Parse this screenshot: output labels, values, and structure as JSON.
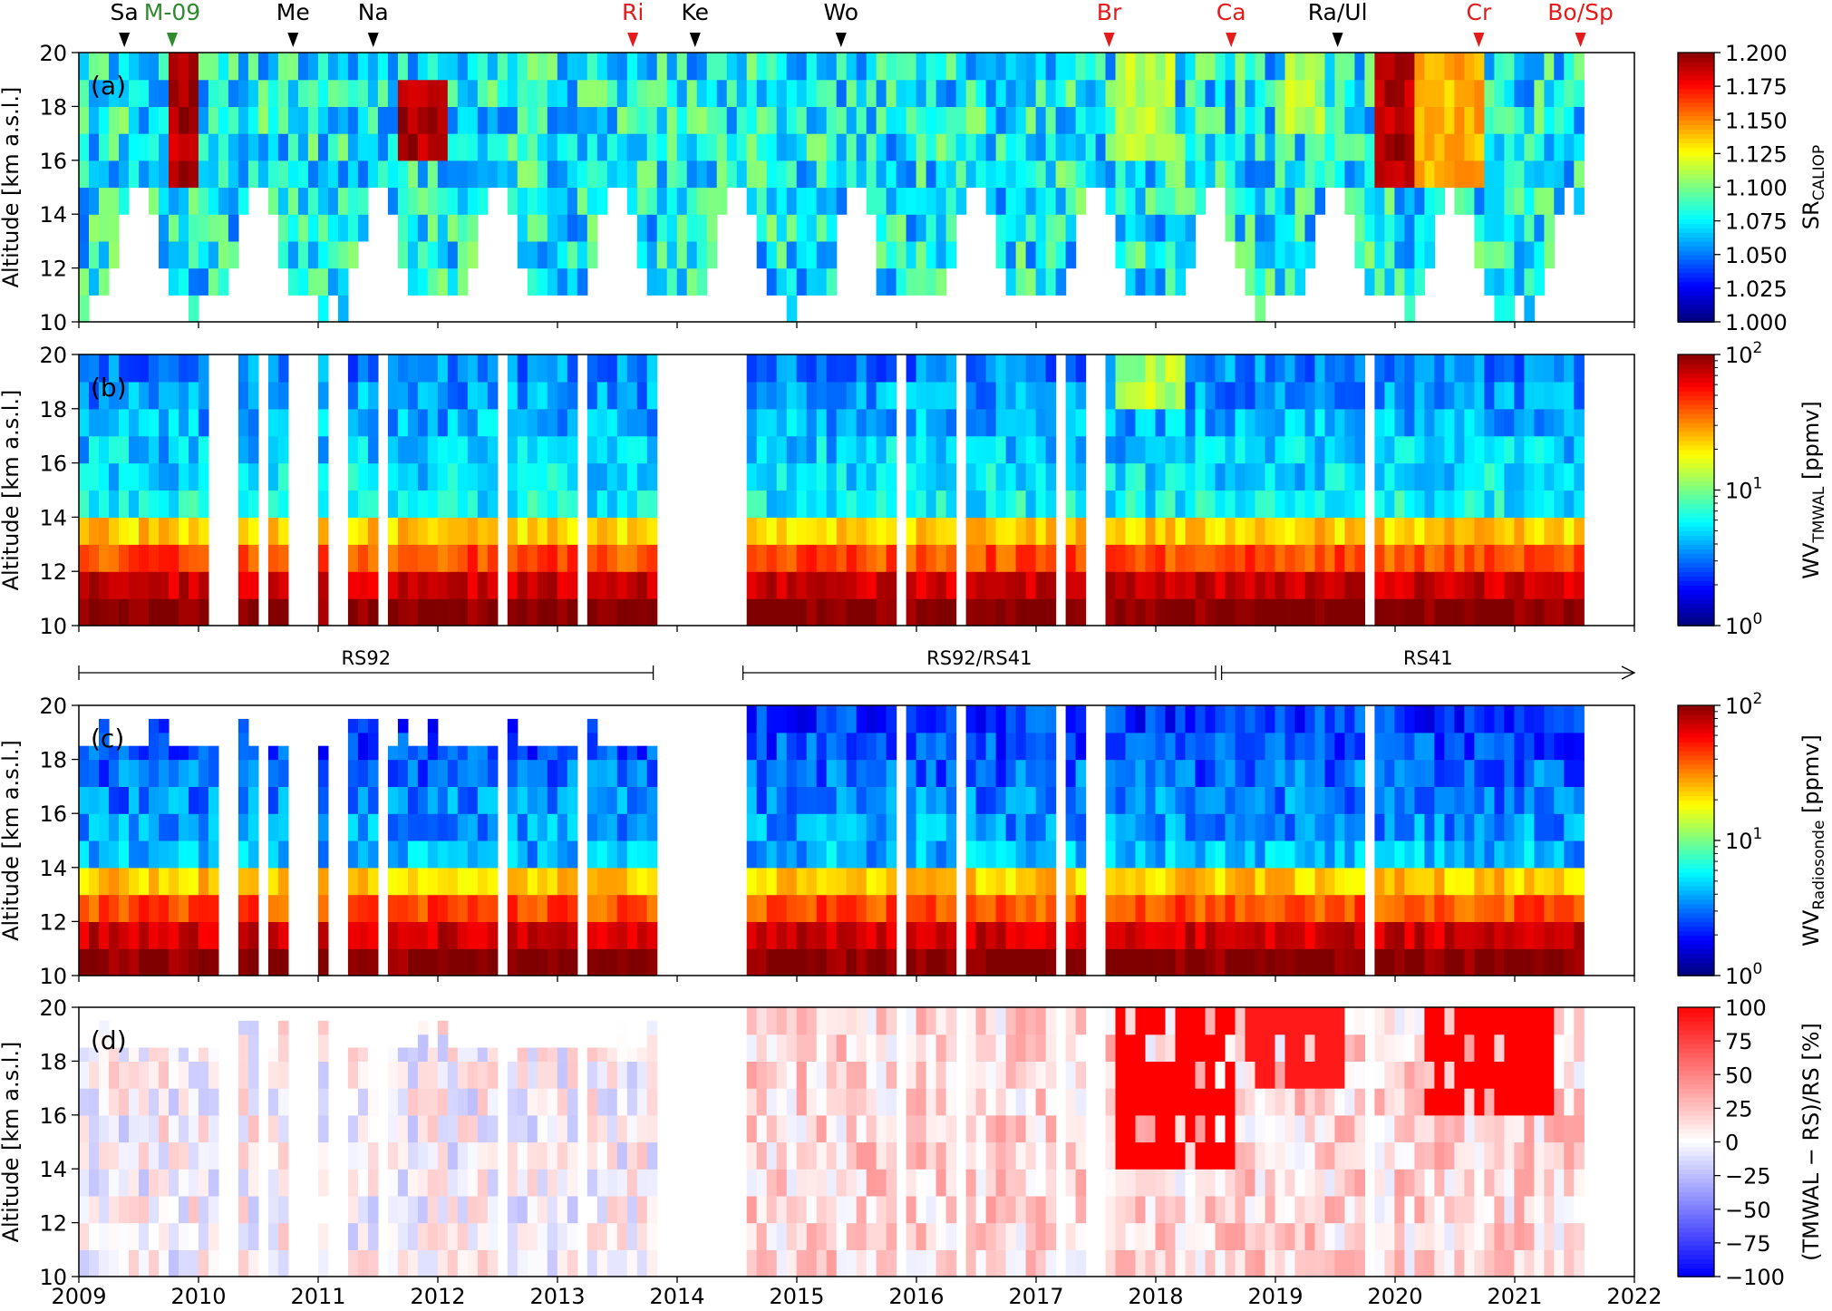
{
  "events": [
    {
      "label": "Sa",
      "year": 2009.38,
      "color": "#000000"
    },
    {
      "label": "M-09",
      "year": 2009.78,
      "color": "#2e8b2e"
    },
    {
      "label": "Me",
      "year": 2010.79,
      "color": "#000000"
    },
    {
      "label": "Na",
      "year": 2011.46,
      "color": "#000000"
    },
    {
      "label": "Ri",
      "year": 2013.63,
      "color": "#e41a1c"
    },
    {
      "label": "Ke",
      "year": 2014.15,
      "color": "#000000"
    },
    {
      "label": "Wo",
      "year": 2015.37,
      "color": "#000000"
    },
    {
      "label": "Br",
      "year": 2017.61,
      "color": "#e41a1c"
    },
    {
      "label": "Ca",
      "year": 2018.63,
      "color": "#e41a1c"
    },
    {
      "label": "Ra/Ul",
      "year": 2019.52,
      "color": "#000000"
    },
    {
      "label": "Cr",
      "year": 2020.7,
      "color": "#e41a1c"
    },
    {
      "label": "Bo/Sp",
      "year": 2021.55,
      "color": "#e41a1c"
    }
  ],
  "sonde_periods": [
    {
      "label": "RS92",
      "start": 2009.0,
      "end": 2013.8,
      "arrow": false
    },
    {
      "label": "RS92/RS41",
      "start": 2014.55,
      "end": 2018.5,
      "arrow": false
    },
    {
      "label": "RS41",
      "start": 2018.55,
      "end": 2022.0,
      "arrow": true
    }
  ],
  "chart_data": [
    {
      "type": "heatmap",
      "panel_label": "(a)",
      "ylabel": "Altitude [km a.s.l.]",
      "colorbar_label": "SR",
      "colorbar_sub": "CALIOP",
      "xlim": [
        2009,
        2022
      ],
      "ylim": [
        10,
        20
      ],
      "xticks": [
        2009,
        2010,
        2011,
        2012,
        2013,
        2014,
        2015,
        2016,
        2017,
        2018,
        2019,
        2020,
        2021,
        2022
      ],
      "yticks": [
        10,
        12,
        14,
        16,
        18,
        20
      ],
      "colormap": "jet",
      "clim": [
        1.0,
        1.2
      ],
      "cbar_ticks": [
        "1.000",
        "1.025",
        "1.050",
        "1.075",
        "1.100",
        "1.125",
        "1.150",
        "1.175",
        "1.200"
      ],
      "row_edges_km": [
        11.5,
        20
      ],
      "time_step": 0.0833,
      "gaps": [],
      "features": [
        {
          "t0": 2009.72,
          "t1": 2009.97,
          "z0": 15.3,
          "z1": 19.6,
          "value": 1.2
        },
        {
          "t0": 2011.65,
          "t1": 2012.0,
          "z0": 16.2,
          "z1": 18.8,
          "value": 1.2
        },
        {
          "t0": 2019.75,
          "t1": 2020.1,
          "z0": 15.4,
          "z1": 19.9,
          "value": 1.2
        },
        {
          "t0": 2020.1,
          "t1": 2020.7,
          "z0": 15.0,
          "z1": 19.5,
          "value": 1.15
        },
        {
          "t0": 2017.65,
          "t1": 2018.1,
          "z0": 16.5,
          "z1": 19.5,
          "value": 1.12
        },
        {
          "t0": 2019.0,
          "t1": 2019.4,
          "z0": 17.5,
          "z1": 19.8,
          "value": 1.12
        }
      ],
      "baseline": 1.075,
      "spread": 0.03
    },
    {
      "type": "heatmap",
      "panel_label": "(b)",
      "ylabel": "Altitude [km a.s.l.]",
      "colorbar_label": "WV",
      "colorbar_sub": "TMWAL",
      "colorbar_unit": " [ppmv]",
      "xlim": [
        2009,
        2022
      ],
      "ylim": [
        10,
        20
      ],
      "yticks": [
        10,
        12,
        14,
        16,
        18,
        20
      ],
      "colormap": "jet",
      "log": true,
      "clim": [
        1,
        100
      ],
      "cbar_ticks": [
        "10",
        "10",
        "10"
      ],
      "cbar_exps": [
        "0",
        "1",
        "2"
      ],
      "time_step": 0.0833,
      "gaps": [
        [
          2010.03,
          2010.25
        ],
        [
          2010.42,
          2010.5
        ],
        [
          2010.67,
          2010.95
        ],
        [
          2011.05,
          2011.2
        ],
        [
          2011.48,
          2011.57
        ],
        [
          2012.47,
          2012.57
        ],
        [
          2013.13,
          2013.2
        ],
        [
          2013.5,
          2013.58
        ],
        [
          2013.82,
          2014.5
        ],
        [
          2015.8,
          2015.88
        ],
        [
          2016.3,
          2016.35
        ],
        [
          2016.77,
          2016.83
        ],
        [
          2017.15,
          2017.22
        ],
        [
          2017.4,
          2017.52
        ],
        [
          2019.7,
          2019.78
        ]
      ],
      "profile": "wv"
    },
    {
      "type": "heatmap",
      "panel_label": "(c)",
      "ylabel": "Altitude [km a.s.l.]",
      "colorbar_label": "WV",
      "colorbar_sub": "Radiosonde",
      "colorbar_unit": " [ppmv]",
      "xlim": [
        2009,
        2022
      ],
      "ylim": [
        10,
        20
      ],
      "yticks": [
        10,
        12,
        14,
        16,
        18,
        20
      ],
      "colormap": "jet",
      "log": true,
      "clim": [
        1,
        100
      ],
      "cbar_ticks": [
        "10",
        "10",
        "10"
      ],
      "cbar_exps": [
        "0",
        "1",
        "2"
      ],
      "time_step": 0.0833,
      "gaps": [
        [
          2010.1,
          2010.25
        ],
        [
          2010.42,
          2010.5
        ],
        [
          2010.67,
          2010.95
        ],
        [
          2011.05,
          2011.2
        ],
        [
          2011.48,
          2011.57
        ],
        [
          2012.47,
          2012.57
        ],
        [
          2013.13,
          2013.2
        ],
        [
          2013.5,
          2013.58
        ],
        [
          2013.82,
          2014.5
        ],
        [
          2015.8,
          2015.88
        ],
        [
          2016.3,
          2016.35
        ],
        [
          2016.77,
          2016.83
        ],
        [
          2017.15,
          2017.22
        ],
        [
          2017.4,
          2017.52
        ],
        [
          2019.7,
          2019.78
        ]
      ],
      "top_2009_2014": 18.5,
      "profile": "wv_rs"
    },
    {
      "type": "heatmap",
      "panel_label": "(d)",
      "ylabel": "Altitude [km a.s.l.]",
      "colorbar_label": "(TMWAL − RS)/RS [%]",
      "xlim": [
        2009,
        2022
      ],
      "ylim": [
        10,
        20
      ],
      "xticks": [
        2009,
        2010,
        2011,
        2012,
        2013,
        2014,
        2015,
        2016,
        2017,
        2018,
        2019,
        2020,
        2021,
        2022
      ],
      "yticks": [
        10,
        12,
        14,
        16,
        18,
        20
      ],
      "colormap": "bwr",
      "clim": [
        -100,
        100
      ],
      "cbar_ticks": [
        "−100",
        "−75",
        "−50",
        "−25",
        "0",
        "25",
        "50",
        "75",
        "100"
      ],
      "time_step": 0.0833,
      "gaps": [
        [
          2010.1,
          2010.25
        ],
        [
          2010.42,
          2010.5
        ],
        [
          2010.67,
          2010.95
        ],
        [
          2011.05,
          2011.2
        ],
        [
          2011.48,
          2011.57
        ],
        [
          2012.47,
          2012.57
        ],
        [
          2013.13,
          2013.2
        ],
        [
          2013.5,
          2013.58
        ],
        [
          2013.82,
          2014.5
        ],
        [
          2015.8,
          2015.88
        ],
        [
          2016.3,
          2016.35
        ],
        [
          2016.77,
          2016.83
        ],
        [
          2017.15,
          2017.22
        ],
        [
          2017.4,
          2017.52
        ],
        [
          2019.7,
          2019.78
        ]
      ],
      "top_2009_2014": 18.5,
      "features": [
        {
          "t0": 2017.6,
          "t1": 2018.6,
          "z0": 14.0,
          "z1": 20.0,
          "value": 100
        },
        {
          "t0": 2018.7,
          "t1": 2019.5,
          "z0": 16.5,
          "z1": 20.0,
          "value": 90
        },
        {
          "t0": 2020.2,
          "t1": 2021.3,
          "z0": 15.5,
          "z1": 20.0,
          "value": 100
        }
      ]
    }
  ]
}
